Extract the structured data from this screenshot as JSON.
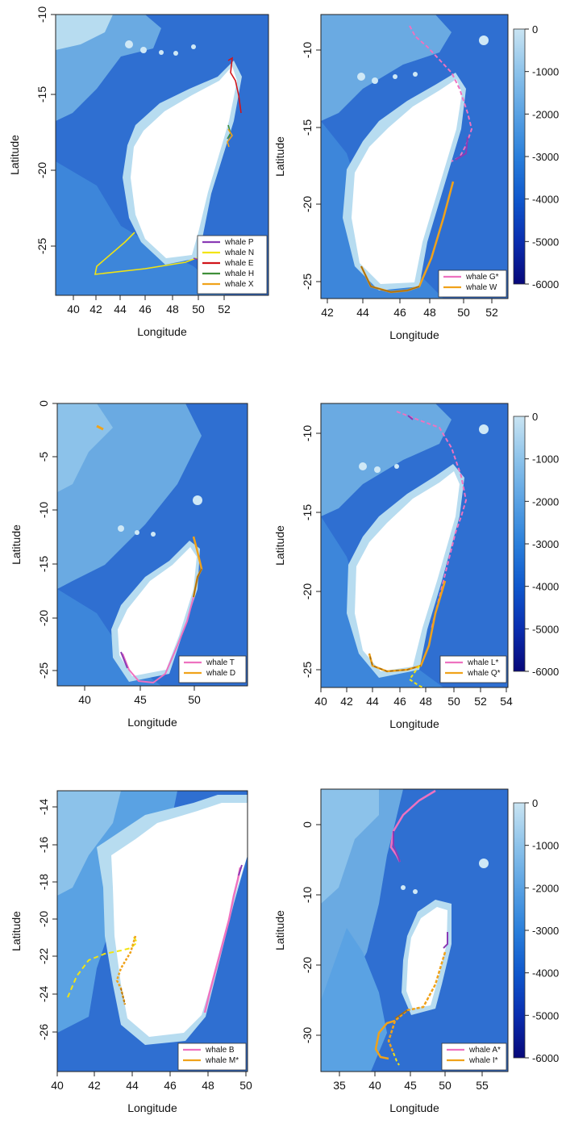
{
  "colorbar": {
    "ticks": [
      "0",
      "-1000",
      "-2000",
      "-3000",
      "-4000",
      "-5000",
      "-6000"
    ],
    "colors": [
      "#08087a",
      "#0a2fb0",
      "#0f57cc",
      "#2a7fdb",
      "#5aa2e3",
      "#8cc2ea",
      "#c9e4f2"
    ]
  },
  "colors": {
    "land": "#ffffff",
    "shelf": "#b7dcf0",
    "slope": "#6aaae2",
    "ocean": "#2f6fd1",
    "deep": "#1d55be",
    "purple": "#8a3bb5",
    "yellow": "#f2e411",
    "red": "#d1141a",
    "green": "#3f8f3a",
    "orange": "#f0a21a",
    "pink": "#ee72c0",
    "brown": "#a36b12"
  },
  "panels": [
    {
      "id": "a",
      "xlabel": "Longitude",
      "ylabel": "Latitude",
      "xticks": [
        "40",
        "42",
        "44",
        "46",
        "48",
        "50",
        "52"
      ],
      "yticks": [
        "-10",
        "-15",
        "-20",
        "-25"
      ],
      "legend": [
        {
          "label": "whale P",
          "color": "#8a3bb5"
        },
        {
          "label": "whale N",
          "color": "#f2e411"
        },
        {
          "label": "whale E",
          "color": "#d1141a"
        },
        {
          "label": "whale H",
          "color": "#3f8f3a"
        },
        {
          "label": "whale X",
          "color": "#f0a21a"
        }
      ]
    },
    {
      "id": "b",
      "xlabel": "Longitude",
      "ylabel": "Latitude",
      "xticks": [
        "42",
        "44",
        "46",
        "48",
        "50",
        "52"
      ],
      "yticks": [
        "-10",
        "-15",
        "-20",
        "-25"
      ],
      "legend": [
        {
          "label": "whale G*",
          "color": "#ee72c0"
        },
        {
          "label": "whale W",
          "color": "#f0a21a"
        }
      ]
    },
    {
      "id": "c",
      "xlabel": "Longitude",
      "ylabel": "Latitude",
      "xticks": [
        "40",
        "45",
        "50"
      ],
      "yticks": [
        "0",
        "-5",
        "-10",
        "-15",
        "-20",
        "-25"
      ],
      "legend": [
        {
          "label": "whale T",
          "color": "#ee72c0"
        },
        {
          "label": "whale D",
          "color": "#f0a21a"
        }
      ]
    },
    {
      "id": "d",
      "xlabel": "Longitude",
      "ylabel": "Latitude",
      "xticks": [
        "40",
        "42",
        "44",
        "46",
        "48",
        "50",
        "52",
        "54"
      ],
      "yticks": [
        "-10",
        "-15",
        "-20",
        "-25"
      ],
      "legend": [
        {
          "label": "whale L*",
          "color": "#ee72c0"
        },
        {
          "label": "whale Q*",
          "color": "#f0a21a"
        }
      ]
    },
    {
      "id": "e",
      "xlabel": "Longitude",
      "ylabel": "Latitude",
      "xticks": [
        "40",
        "42",
        "44",
        "46",
        "48",
        "50"
      ],
      "yticks": [
        "-14",
        "-16",
        "-18",
        "-20",
        "-22",
        "-24",
        "-26"
      ],
      "legend": [
        {
          "label": "whale B",
          "color": "#ee72c0"
        },
        {
          "label": "whale M*",
          "color": "#f0a21a"
        }
      ]
    },
    {
      "id": "f",
      "xlabel": "Longitude",
      "ylabel": "Latitude",
      "xticks": [
        "35",
        "40",
        "45",
        "50",
        "55"
      ],
      "yticks": [
        "0",
        "-10",
        "-20",
        "-30"
      ],
      "legend": [
        {
          "label": "whale A*",
          "color": "#ee72c0"
        },
        {
          "label": "whale I*",
          "color": "#f0a21a"
        }
      ]
    }
  ]
}
